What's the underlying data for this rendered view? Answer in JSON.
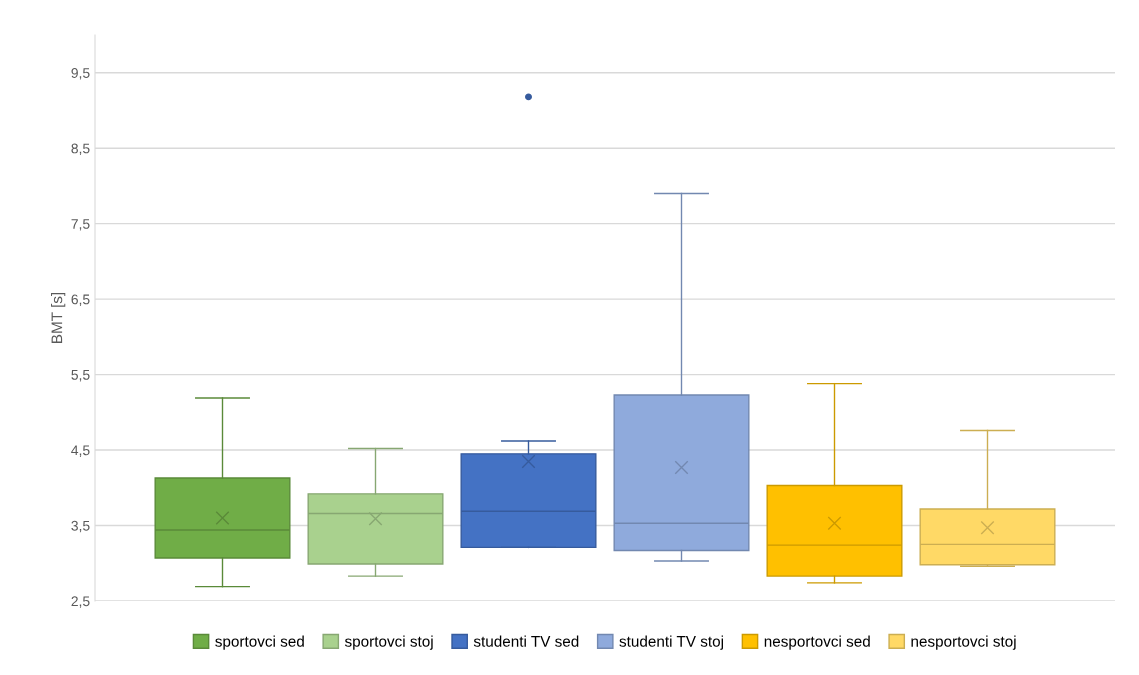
{
  "chart_data": {
    "type": "box",
    "ylabel": "BMT [s]",
    "categories": [
      null
    ],
    "ylim": [
      2.5,
      10
    ],
    "yticks": [
      {
        "value": 2.5,
        "label": "2,5"
      },
      {
        "value": 3.5,
        "label": "3,5"
      },
      {
        "value": 4.5,
        "label": "4,5"
      },
      {
        "value": 5.5,
        "label": "5,5"
      },
      {
        "value": 6.5,
        "label": "6,5"
      },
      {
        "value": 7.5,
        "label": "7,5"
      },
      {
        "value": 8.5,
        "label": "8,5"
      },
      {
        "value": 9.5,
        "label": "9,5"
      }
    ],
    "tick_labels": "y",
    "grid": "y",
    "legend": "bottom",
    "series": [
      {
        "name": "sportovci sed",
        "color": "#70ad47",
        "boxes": [
          {
            "low": 2.69,
            "q1": 3.07,
            "median": 3.44,
            "q3": 4.13,
            "high": 5.19,
            "mean": 3.6
          }
        ]
      },
      {
        "name": "sportovci stoj",
        "color": "#a9d18e",
        "boxes": [
          {
            "low": 2.83,
            "q1": 2.99,
            "median": 3.66,
            "q3": 3.92,
            "high": 4.52,
            "mean": 3.59
          }
        ]
      },
      {
        "name": "studenti TV sed",
        "color": "#4472c4",
        "boxes": [
          {
            "low": 3.21,
            "q1": 3.21,
            "median": 3.69,
            "q3": 4.45,
            "high": 4.62,
            "mean": 4.35,
            "outliers": [
              9.18
            ]
          }
        ]
      },
      {
        "name": "studenti TV stoj",
        "color": "#8faadc",
        "boxes": [
          {
            "low": 3.03,
            "q1": 3.17,
            "median": 3.53,
            "q3": 5.23,
            "high": 7.9,
            "mean": 4.27
          }
        ]
      },
      {
        "name": "nesportovci sed",
        "color": "#ffc000",
        "boxes": [
          {
            "low": 2.74,
            "q1": 2.83,
            "median": 3.24,
            "q3": 4.03,
            "high": 5.38,
            "mean": 3.53
          }
        ]
      },
      {
        "name": "nesportovci stoj",
        "color": "#ffd966",
        "boxes": [
          {
            "low": 2.96,
            "q1": 2.98,
            "median": 3.25,
            "q3": 3.72,
            "high": 4.76,
            "mean": 3.47
          }
        ]
      }
    ]
  }
}
